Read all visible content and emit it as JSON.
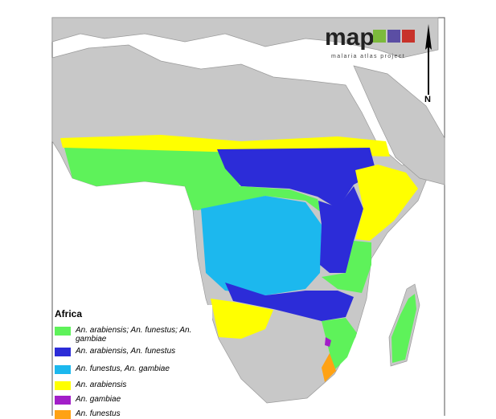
{
  "logo": {
    "title": "map",
    "subtitle": "malaria atlas project"
  },
  "north_label": "N",
  "legend": {
    "title": "Africa",
    "items": [
      {
        "label": "An. arabiensis; An. funestus; An. gambiae",
        "color": "#5ef25a"
      },
      {
        "label": "An. arabiensis, An. funestus",
        "color": "#2c2cd8"
      },
      {
        "label": "An. funestus, An. gambiae",
        "color": "#1cb8ee"
      },
      {
        "label": "An. arabiensis",
        "color": "#ffff00"
      },
      {
        "label": "An. gambiae",
        "color": "#a21ec8"
      },
      {
        "label": "An. funestus",
        "color": "#ffa214"
      }
    ]
  }
}
